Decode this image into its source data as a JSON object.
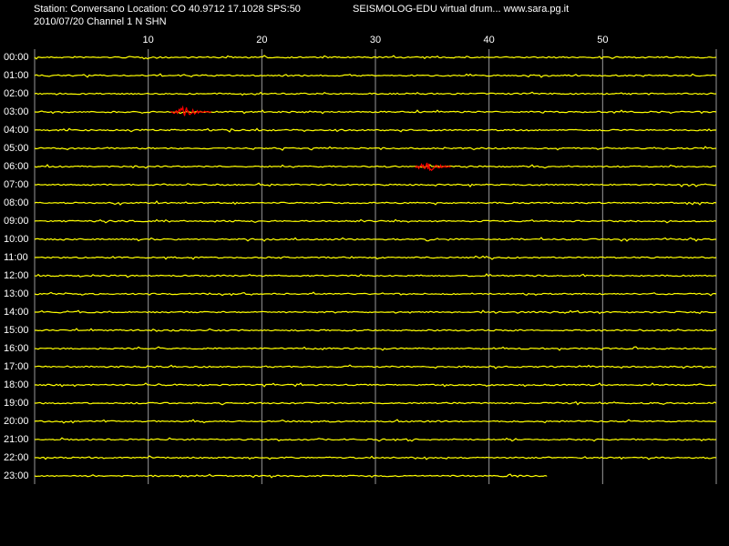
{
  "chart_data": {
    "type": "drum",
    "title": "Station: Conversano Location: CO 40.9712 17.1028 SPS:50",
    "subtitle": "2010/07/20  Channel 1 N SHN",
    "source": "SEISMOLOG-EDU virtual drum... www.sara.pg.it",
    "categories": [
      "00:00",
      "01:00",
      "02:00",
      "03:00",
      "04:00",
      "05:00",
      "06:00",
      "07:00",
      "08:00",
      "09:00",
      "10:00",
      "11:00",
      "12:00",
      "13:00",
      "14:00",
      "15:00",
      "16:00",
      "17:00",
      "18:00",
      "19:00",
      "20:00",
      "21:00",
      "22:00",
      "23:00"
    ],
    "xlim": [
      0,
      60
    ],
    "xticks": [
      10,
      20,
      30,
      40,
      50
    ],
    "trace_end": [
      60,
      60,
      60,
      60,
      60,
      60,
      60,
      60,
      60,
      60,
      60,
      60,
      60,
      60,
      60,
      60,
      60,
      60,
      60,
      60,
      60,
      60,
      60,
      45.1
    ],
    "event_start": [
      null,
      null,
      null,
      12.0,
      null,
      null,
      33.5,
      null,
      null,
      null,
      null,
      null,
      null,
      null,
      null,
      null,
      null,
      null,
      null,
      null,
      null,
      null,
      null,
      null
    ],
    "event_end": [
      null,
      null,
      null,
      15.6,
      null,
      null,
      36.7,
      null,
      null,
      null,
      null,
      null,
      null,
      null,
      null,
      null,
      null,
      null,
      null,
      null,
      null,
      null,
      null,
      null
    ],
    "trace_color": "#ffff00",
    "event_color": "#ff0000",
    "grid": true
  }
}
